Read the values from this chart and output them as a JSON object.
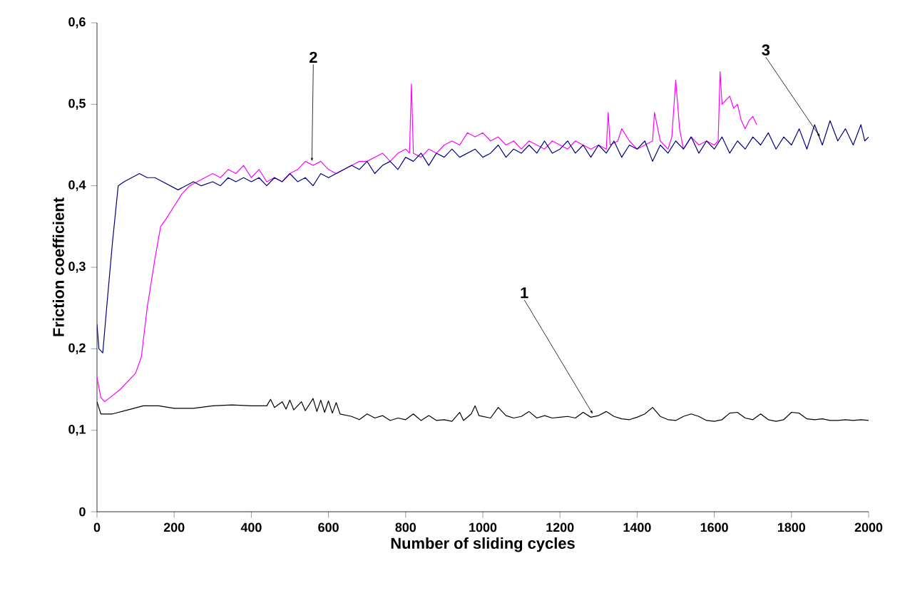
{
  "chart_data": {
    "type": "line",
    "xlabel": "Number of sliding cycles",
    "ylabel": "Friction coefficient",
    "xlim": [
      0,
      2000
    ],
    "ylim": [
      0,
      0.6
    ],
    "xticks": [
      0,
      200,
      400,
      600,
      800,
      1000,
      1200,
      1400,
      1600,
      1800,
      2000
    ],
    "yticks": [
      {
        "value": 0,
        "label": "0"
      },
      {
        "value": 0.1,
        "label": "0,1"
      },
      {
        "value": 0.2,
        "label": "0,2"
      },
      {
        "value": 0.3,
        "label": "0,3"
      },
      {
        "value": 0.4,
        "label": "0,4"
      },
      {
        "value": 0.5,
        "label": "0,5"
      },
      {
        "value": 0.6,
        "label": "0,6"
      }
    ],
    "series": [
      {
        "color": "#000000",
        "x": [
          0,
          10,
          40,
          80,
          120,
          160,
          200,
          250,
          300,
          350,
          400,
          440,
          450,
          460,
          480,
          490,
          500,
          510,
          530,
          540,
          560,
          570,
          580,
          590,
          600,
          610,
          620,
          630,
          660,
          680,
          700,
          720,
          740,
          760,
          780,
          800,
          820,
          840,
          860,
          880,
          900,
          920,
          940,
          950,
          970,
          980,
          990,
          1020,
          1040,
          1060,
          1080,
          1100,
          1120,
          1140,
          1160,
          1180,
          1200,
          1220,
          1240,
          1260,
          1280,
          1300,
          1320,
          1340,
          1360,
          1380,
          1400,
          1420,
          1440,
          1460,
          1480,
          1500,
          1520,
          1540,
          1560,
          1580,
          1600,
          1620,
          1640,
          1660,
          1680,
          1700,
          1720,
          1740,
          1760,
          1780,
          1800,
          1820,
          1840,
          1860,
          1880,
          1900,
          1920,
          1940,
          1960,
          1980,
          2000
        ],
        "values": [
          0.135,
          0.12,
          0.12,
          0.125,
          0.13,
          0.13,
          0.127,
          0.127,
          0.13,
          0.131,
          0.13,
          0.13,
          0.138,
          0.128,
          0.135,
          0.126,
          0.137,
          0.125,
          0.135,
          0.124,
          0.139,
          0.123,
          0.137,
          0.122,
          0.136,
          0.121,
          0.134,
          0.12,
          0.117,
          0.113,
          0.12,
          0.115,
          0.118,
          0.112,
          0.115,
          0.113,
          0.12,
          0.112,
          0.118,
          0.112,
          0.113,
          0.111,
          0.122,
          0.112,
          0.12,
          0.13,
          0.118,
          0.115,
          0.128,
          0.118,
          0.115,
          0.117,
          0.123,
          0.115,
          0.118,
          0.115,
          0.116,
          0.117,
          0.115,
          0.122,
          0.116,
          0.118,
          0.123,
          0.117,
          0.114,
          0.113,
          0.116,
          0.12,
          0.128,
          0.117,
          0.113,
          0.112,
          0.117,
          0.12,
          0.117,
          0.112,
          0.111,
          0.113,
          0.121,
          0.122,
          0.115,
          0.113,
          0.12,
          0.113,
          0.111,
          0.113,
          0.122,
          0.121,
          0.114,
          0.113,
          0.114,
          0.112,
          0.112,
          0.113,
          0.112,
          0.113,
          0.112
        ]
      },
      {
        "color": "#ff00ff",
        "x": [
          0,
          10,
          20,
          60,
          100,
          115,
          130,
          150,
          165,
          180,
          200,
          220,
          240,
          260,
          280,
          300,
          320,
          340,
          360,
          380,
          400,
          420,
          440,
          460,
          480,
          500,
          520,
          540,
          560,
          580,
          600,
          620,
          640,
          660,
          680,
          700,
          720,
          740,
          760,
          780,
          800,
          810,
          815,
          820,
          840,
          860,
          880,
          900,
          920,
          940,
          960,
          980,
          1000,
          1020,
          1040,
          1060,
          1080,
          1100,
          1120,
          1140,
          1160,
          1180,
          1200,
          1220,
          1240,
          1260,
          1280,
          1300,
          1320,
          1325,
          1330,
          1350,
          1360,
          1380,
          1400,
          1420,
          1440,
          1445,
          1460,
          1480,
          1490,
          1500,
          1510,
          1520,
          1540,
          1560,
          1580,
          1600,
          1610,
          1615,
          1620,
          1640,
          1650,
          1660,
          1670,
          1680,
          1690,
          1700,
          1710
        ],
        "values": [
          0.165,
          0.14,
          0.135,
          0.15,
          0.17,
          0.19,
          0.25,
          0.31,
          0.35,
          0.36,
          0.375,
          0.39,
          0.4,
          0.405,
          0.41,
          0.415,
          0.41,
          0.42,
          0.415,
          0.425,
          0.41,
          0.42,
          0.405,
          0.41,
          0.405,
          0.415,
          0.42,
          0.43,
          0.425,
          0.43,
          0.42,
          0.415,
          0.42,
          0.425,
          0.43,
          0.43,
          0.435,
          0.44,
          0.43,
          0.44,
          0.445,
          0.44,
          0.525,
          0.44,
          0.435,
          0.445,
          0.44,
          0.45,
          0.455,
          0.45,
          0.465,
          0.46,
          0.465,
          0.455,
          0.46,
          0.45,
          0.455,
          0.445,
          0.455,
          0.45,
          0.445,
          0.455,
          0.45,
          0.445,
          0.455,
          0.45,
          0.445,
          0.45,
          0.445,
          0.49,
          0.45,
          0.455,
          0.47,
          0.455,
          0.445,
          0.45,
          0.455,
          0.49,
          0.455,
          0.445,
          0.46,
          0.53,
          0.47,
          0.445,
          0.46,
          0.45,
          0.455,
          0.45,
          0.455,
          0.54,
          0.5,
          0.51,
          0.495,
          0.5,
          0.48,
          0.47,
          0.48,
          0.485,
          0.475
        ]
      },
      {
        "color": "#000080",
        "x": [
          0,
          5,
          15,
          25,
          40,
          55,
          70,
          90,
          110,
          130,
          150,
          170,
          190,
          210,
          230,
          250,
          270,
          300,
          320,
          340,
          360,
          380,
          400,
          420,
          440,
          460,
          480,
          500,
          520,
          540,
          560,
          580,
          600,
          620,
          640,
          660,
          680,
          700,
          720,
          740,
          760,
          780,
          800,
          820,
          840,
          860,
          880,
          900,
          920,
          940,
          960,
          980,
          1000,
          1020,
          1040,
          1060,
          1080,
          1100,
          1120,
          1140,
          1160,
          1180,
          1200,
          1220,
          1240,
          1260,
          1280,
          1300,
          1320,
          1340,
          1360,
          1380,
          1400,
          1420,
          1440,
          1460,
          1480,
          1500,
          1520,
          1540,
          1560,
          1580,
          1600,
          1620,
          1640,
          1660,
          1680,
          1700,
          1720,
          1740,
          1760,
          1780,
          1800,
          1820,
          1840,
          1860,
          1880,
          1900,
          1920,
          1940,
          1960,
          1980,
          1990,
          2000
        ],
        "values": [
          0.23,
          0.2,
          0.195,
          0.25,
          0.33,
          0.4,
          0.405,
          0.41,
          0.415,
          0.41,
          0.41,
          0.405,
          0.4,
          0.395,
          0.4,
          0.405,
          0.4,
          0.405,
          0.4,
          0.41,
          0.405,
          0.41,
          0.405,
          0.41,
          0.4,
          0.41,
          0.405,
          0.415,
          0.405,
          0.41,
          0.4,
          0.415,
          0.41,
          0.415,
          0.42,
          0.425,
          0.42,
          0.43,
          0.415,
          0.425,
          0.43,
          0.42,
          0.435,
          0.43,
          0.44,
          0.425,
          0.44,
          0.435,
          0.445,
          0.435,
          0.44,
          0.445,
          0.435,
          0.44,
          0.45,
          0.435,
          0.445,
          0.44,
          0.45,
          0.44,
          0.455,
          0.44,
          0.445,
          0.455,
          0.44,
          0.45,
          0.435,
          0.45,
          0.44,
          0.455,
          0.435,
          0.45,
          0.445,
          0.455,
          0.43,
          0.45,
          0.44,
          0.455,
          0.445,
          0.46,
          0.44,
          0.455,
          0.445,
          0.46,
          0.44,
          0.455,
          0.445,
          0.46,
          0.45,
          0.465,
          0.445,
          0.46,
          0.45,
          0.47,
          0.445,
          0.475,
          0.45,
          0.48,
          0.455,
          0.47,
          0.45,
          0.475,
          0.455,
          0.46
        ]
      }
    ],
    "annotations": [
      {
        "text": "1",
        "x": 1285,
        "y": 0.12
      },
      {
        "text": "2",
        "x": 557,
        "y": 0.43
      },
      {
        "text": "3",
        "x": 1874,
        "y": 0.46
      }
    ]
  }
}
